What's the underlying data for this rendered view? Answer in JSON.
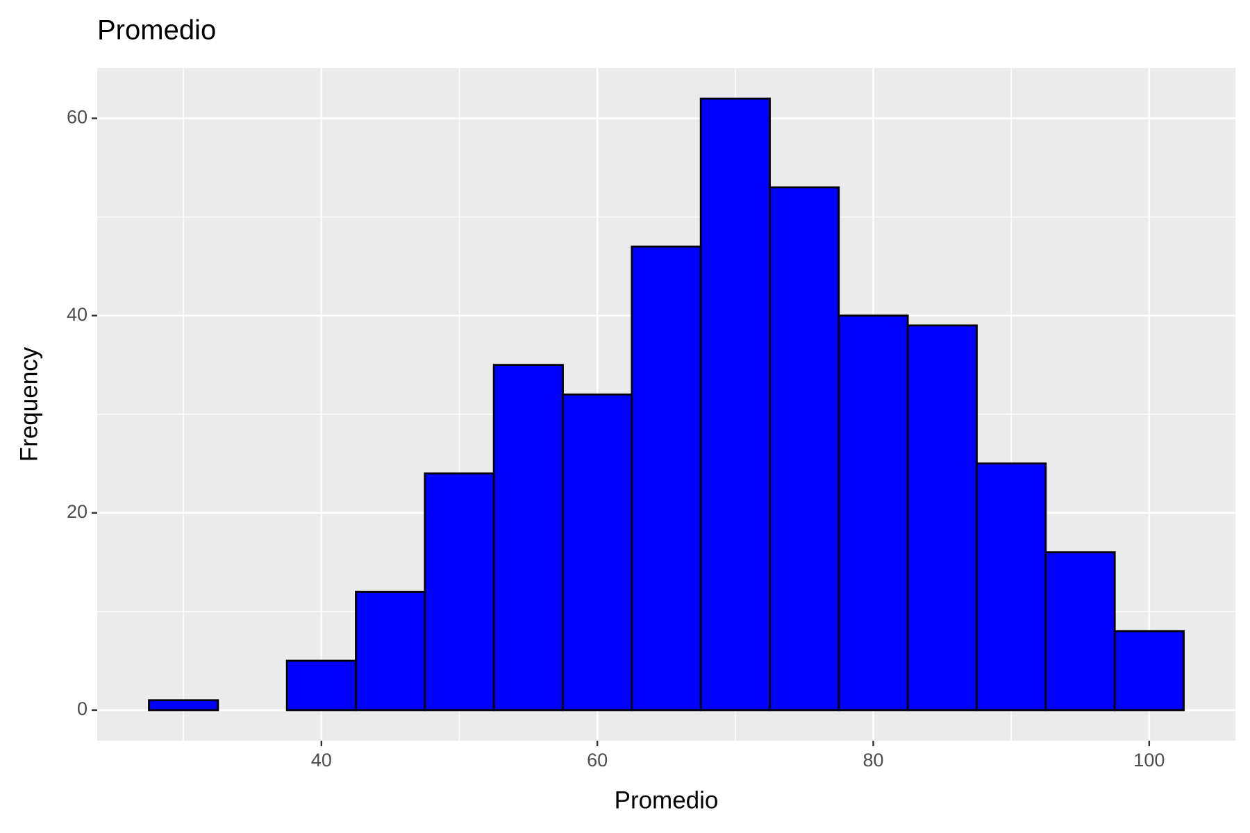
{
  "chart_data": {
    "type": "histogram",
    "title": "Promedio",
    "x_label": "Promedio",
    "y_label": "Frequency",
    "bins": [
      27.5,
      32.5,
      37.5,
      42.5,
      47.5,
      52.5,
      57.5,
      62.5,
      67.5,
      72.5,
      77.5,
      82.5,
      87.5,
      92.5,
      97.5,
      102.5
    ],
    "counts": [
      1,
      0,
      5,
      12,
      24,
      35,
      32,
      47,
      62,
      53,
      40,
      39,
      25,
      16,
      8
    ],
    "color": "#0000ff",
    "edge_color": "#000000",
    "xlim": [
      23.75,
      106.25
    ],
    "xticks": [
      40,
      60,
      80,
      100
    ],
    "ylim": [
      -3.1,
      65.1
    ],
    "yticks": [
      0,
      20,
      40,
      60
    ],
    "grid": true
  }
}
